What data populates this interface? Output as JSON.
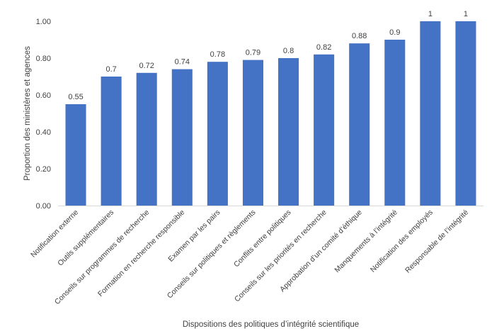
{
  "chart_data": {
    "type": "bar",
    "title": "",
    "xlabel": "Dispositions des politiques d’intégrité scientifique",
    "ylabel": "Proportion des ministères et agences",
    "ylim": [
      0,
      1
    ],
    "yticks": [
      "0.00",
      "0.20",
      "0.40",
      "0.60",
      "0.80",
      "1.00"
    ],
    "grid": false,
    "legend": "none",
    "categories": [
      "Notification externe",
      "Outils supplémentaires",
      "Conseils sur programmes de recherche",
      "Formation en recherche responsible",
      "Examen par les pairs",
      "Conseils sur politiques et règlements",
      "Conflits entre politiques",
      "Conseils sur les priorités en recherche",
      "Approbation d’un comité d’éthique",
      "Manquements à l’intégrité",
      "Notification des employés",
      "Responsable de l’intégrité"
    ],
    "values": [
      0.55,
      0.7,
      0.72,
      0.74,
      0.78,
      0.79,
      0.8,
      0.82,
      0.88,
      0.9,
      1,
      1
    ],
    "data_labels": [
      "0.55",
      "0.7",
      "0.72",
      "0.74",
      "0.78",
      "0.79",
      "0.8",
      "0.82",
      "0.88",
      "0.9",
      "1",
      "1"
    ],
    "colors": {
      "bar": "#4472c4",
      "axis": "#d9d9d9",
      "text": "#404040"
    }
  }
}
